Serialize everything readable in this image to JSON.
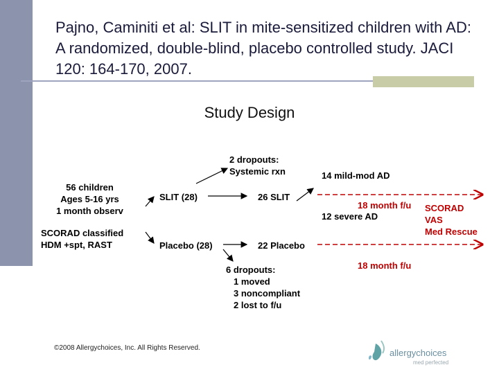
{
  "slide": {
    "title": "Pajno, Caminiti et al:  SLIT in mite-sensitized children with AD:  A randomized, double-blind, placebo controlled study.  JACI 120: 164-170, 2007.",
    "subtitle": "Study Design",
    "copyright": "©2008 Allergychoices, Inc. All Rights Reserved."
  },
  "diagram": {
    "population": [
      "56 children",
      "Ages 5-16 yrs",
      "1 month observ"
    ],
    "screening": [
      "SCORAD classified",
      "HDM +spt, RAST"
    ],
    "slit_arm": "SLIT (28)",
    "placebo_arm": "Placebo (28)",
    "slit_dropouts": [
      "2 dropouts:",
      "Systemic rxn"
    ],
    "slit_remaining": "26 SLIT",
    "placebo_remaining": "22 Placebo",
    "placebo_dropouts": [
      "6 dropouts:",
      "1 moved",
      "3 noncompliant",
      "2 lost to f/u"
    ],
    "slit_severity_mild": "14 mild-mod AD",
    "slit_severity_severe": "12 severe AD",
    "slit_followup": "18 month f/u",
    "placebo_followup": "18 month f/u",
    "outcomes": [
      "SCORAD",
      "VAS",
      "Med Rescue"
    ]
  },
  "logo": {
    "brand": "allergychoices",
    "tagline": "med perfected"
  },
  "colors": {
    "sidebar": "#8c93ad",
    "accent_red": "#c00000",
    "rule": "#9ea4be",
    "rule_box": "#c8cda8",
    "logo_teal": "#5fa3a6"
  }
}
